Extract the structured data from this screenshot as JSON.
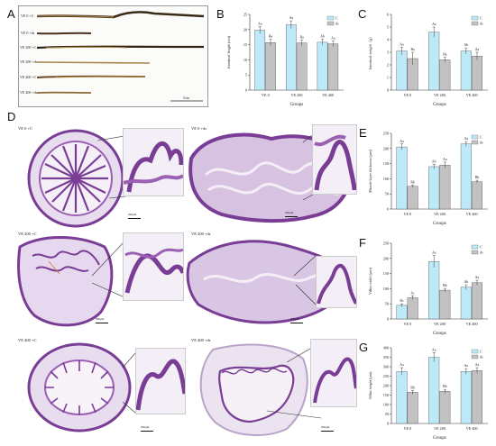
{
  "panels": {
    "A": {
      "letter": "A",
      "labels": [
        "VE 0 +C",
        "VE 0 +ds",
        "VE 200 +C",
        "VE 200 +ds",
        "VE 400 +C",
        "VE 400 +ds"
      ],
      "scale": "5cm"
    },
    "B": {
      "letter": "B"
    },
    "C": {
      "letter": "C"
    },
    "D": {
      "letter": "D",
      "tiles": [
        {
          "label": "VE 0 +C",
          "scale": "500μm"
        },
        {
          "label": "VE 0 +ds",
          "scale": "500μm"
        },
        {
          "label": "VE 200 +C",
          "scale": "500μm"
        },
        {
          "label": "VE 200 +ds",
          "scale": "500μm"
        },
        {
          "label": "VE 400 +C",
          "scale": "500μm"
        },
        {
          "label": "VE 400 +ds",
          "scale": "500μm"
        }
      ]
    },
    "E": {
      "letter": "E"
    },
    "F": {
      "letter": "F"
    },
    "G": {
      "letter": "G"
    }
  },
  "colors": {
    "C": "#bde9f8",
    "ds": "#c2c2c2",
    "stroke": "#555555",
    "tissue": "#7a3d96",
    "tissueLight": "#cfb2dc"
  },
  "chart_data": [
    {
      "panel": "B",
      "type": "bar",
      "categories": [
        "VE 0",
        "VE 200",
        "VE 400"
      ],
      "legend": [
        "C",
        "ds"
      ],
      "legend_position": "top-right",
      "xlabel": "Groups",
      "ylabel": "Intestinal length (cm)",
      "ylim": [
        0,
        25
      ],
      "yticks": [
        0,
        5,
        10,
        15,
        20,
        25
      ],
      "series": [
        {
          "name": "C",
          "values": [
            19.8,
            21.6,
            15.8
          ],
          "errors": [
            1.2,
            1.3,
            1.0
          ],
          "labels": [
            "Aa",
            "Aa",
            "Ab"
          ]
        },
        {
          "name": "ds",
          "values": [
            15.7,
            15.6,
            15.3
          ],
          "errors": [
            1.1,
            0.9,
            0.9
          ],
          "labels": [
            "Ba",
            "Ba",
            "Aa"
          ]
        }
      ]
    },
    {
      "panel": "C",
      "type": "bar",
      "categories": [
        "VE 0",
        "VE 200",
        "VE 400"
      ],
      "legend": [
        "C",
        "ds"
      ],
      "legend_position": "top-right",
      "xlabel": "Groups",
      "ylabel": "Intestinal weight（g）",
      "ylim": [
        0,
        6
      ],
      "yticks": [
        0,
        1,
        2,
        3,
        4,
        5,
        6
      ],
      "series": [
        {
          "name": "C",
          "values": [
            3.1,
            4.6,
            3.1
          ],
          "errors": [
            0.3,
            0.4,
            0.25
          ],
          "labels": [
            "Aa",
            "Aa",
            "Ab"
          ]
        },
        {
          "name": "ds",
          "values": [
            2.5,
            2.4,
            2.7
          ],
          "errors": [
            0.5,
            0.2,
            0.3
          ],
          "labels": [
            "Ba",
            "Ba",
            "Aa"
          ]
        }
      ]
    },
    {
      "panel": "E",
      "type": "bar",
      "categories": [
        "VE 0",
        "VE 200",
        "VE 400"
      ],
      "legend": [
        "C",
        "ds"
      ],
      "legend_position": "top-right",
      "xlabel": "Groups",
      "ylabel": "Muscle layer thickness (μm)",
      "ylim": [
        0,
        250
      ],
      "yticks": [
        0,
        50,
        100,
        150,
        200,
        250
      ],
      "series": [
        {
          "name": "C",
          "values": [
            205,
            140,
            215
          ],
          "errors": [
            10,
            8,
            8
          ],
          "labels": [
            "Aa",
            "Ab",
            "Aa"
          ]
        },
        {
          "name": "ds",
          "values": [
            75,
            145,
            90
          ],
          "errors": [
            4,
            10,
            5
          ],
          "labels": [
            "Bb",
            "Aa",
            "Bb"
          ]
        }
      ]
    },
    {
      "panel": "F",
      "type": "bar",
      "categories": [
        "VE 0",
        "VE 200",
        "VE 400"
      ],
      "legend": [
        "C",
        "ds"
      ],
      "legend_position": "top-right",
      "xlabel": "Groups",
      "ylabel": "Villus width (μm)",
      "ylim": [
        0,
        250
      ],
      "yticks": [
        0,
        50,
        100,
        150,
        200,
        250
      ],
      "series": [
        {
          "name": "C",
          "values": [
            45,
            190,
            105
          ],
          "errors": [
            5,
            20,
            8
          ],
          "labels": [
            "Bc",
            "Aa",
            "Ab"
          ]
        },
        {
          "name": "ds",
          "values": [
            70,
            95,
            120
          ],
          "errors": [
            6,
            6,
            8
          ],
          "labels": [
            "Ac",
            "Bb",
            "Aa"
          ]
        }
      ]
    },
    {
      "panel": "G",
      "type": "bar",
      "categories": [
        "VE 0",
        "VE 200",
        "VE 400"
      ],
      "legend": [
        "C",
        "ds"
      ],
      "legend_position": "top-right",
      "xlabel": "Groups",
      "ylabel": "Villus height (μm)",
      "ylim": [
        0,
        400
      ],
      "yticks": [
        0,
        50,
        100,
        150,
        200,
        250,
        300,
        350,
        400
      ],
      "series": [
        {
          "name": "C",
          "values": [
            275,
            350,
            275
          ],
          "errors": [
            20,
            25,
            15
          ],
          "labels": [
            "Aa",
            "Aa",
            "Aa"
          ]
        },
        {
          "name": "ds",
          "values": [
            165,
            170,
            280
          ],
          "errors": [
            10,
            10,
            15
          ],
          "labels": [
            "Bb",
            "Bb",
            "Aa"
          ]
        }
      ]
    }
  ]
}
